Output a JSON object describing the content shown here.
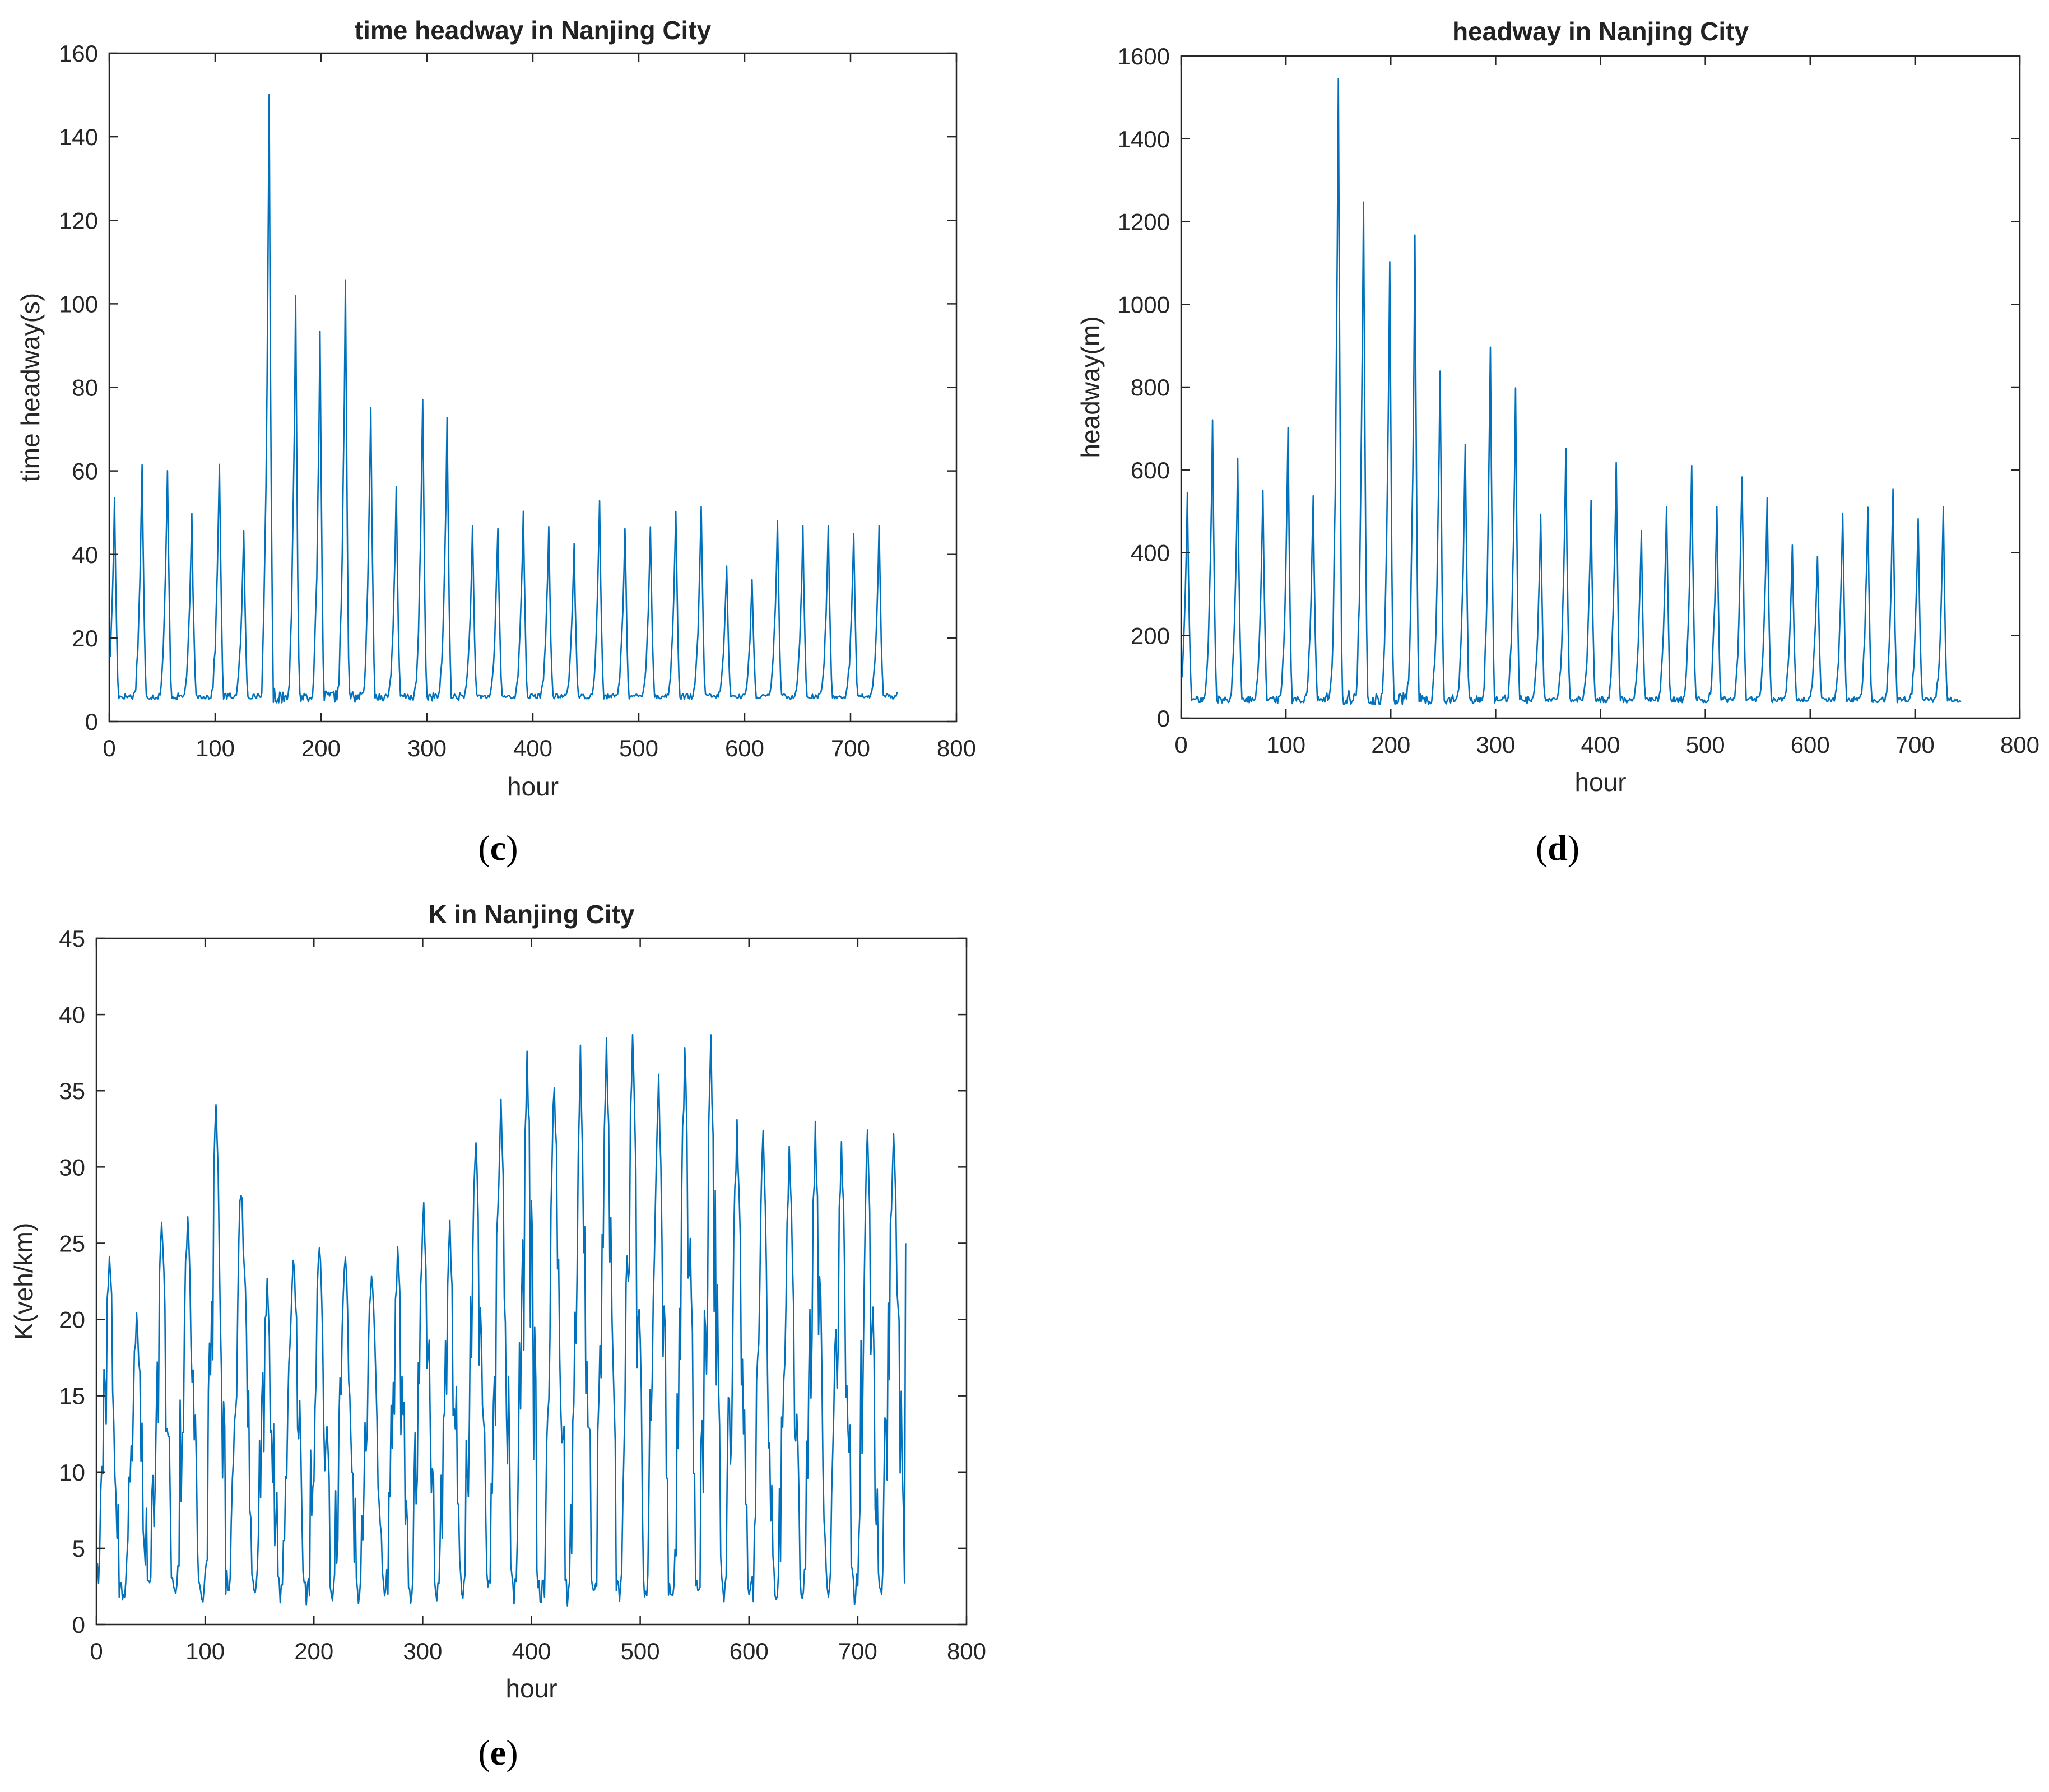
{
  "colors": {
    "series": "#0072bd",
    "axis": "#262626",
    "background": "#ffffff"
  },
  "chart_data": [
    {
      "type": "line",
      "panel": "c",
      "title": "time headway in Nanjing City",
      "xlabel": "hour",
      "ylabel": "time headway(s)",
      "xlim": [
        0,
        800
      ],
      "ylim": [
        0,
        160
      ],
      "xticks": [
        0,
        100,
        200,
        300,
        400,
        500,
        600,
        700,
        800
      ],
      "yticks": [
        0,
        20,
        40,
        60,
        80,
        100,
        120,
        140,
        160
      ],
      "grid": false,
      "x_range": [
        1,
        744
      ],
      "baseline": 6,
      "peaks": [
        [
          5,
          53
        ],
        [
          31,
          62
        ],
        [
          55,
          60
        ],
        [
          78,
          49
        ],
        [
          104,
          63
        ],
        [
          127,
          45
        ],
        [
          151,
          151
        ],
        [
          176,
          100
        ],
        [
          199,
          92
        ],
        [
          223,
          105
        ],
        [
          247,
          77
        ],
        [
          271,
          55
        ],
        [
          296,
          79
        ],
        [
          319,
          73
        ],
        [
          343,
          46
        ],
        [
          367,
          47
        ],
        [
          391,
          51
        ],
        [
          415,
          47
        ],
        [
          439,
          43
        ],
        [
          463,
          52
        ],
        [
          487,
          47
        ],
        [
          511,
          47
        ],
        [
          535,
          51
        ],
        [
          559,
          52
        ],
        [
          583,
          37
        ],
        [
          607,
          33
        ],
        [
          631,
          48
        ],
        [
          655,
          46
        ],
        [
          679,
          46
        ],
        [
          703,
          45
        ],
        [
          727,
          47
        ]
      ],
      "end_value": 7
    },
    {
      "type": "line",
      "panel": "d",
      "title": "headway in Nanjing City",
      "xlabel": "hour",
      "ylabel": "headway(m)",
      "xlim": [
        0,
        800
      ],
      "ylim": [
        0,
        1600
      ],
      "xticks": [
        0,
        100,
        200,
        300,
        400,
        500,
        600,
        700,
        800
      ],
      "yticks": [
        0,
        200,
        400,
        600,
        800,
        1000,
        1200,
        1400,
        1600
      ],
      "grid": false,
      "x_range": [
        1,
        744
      ],
      "baseline": 45,
      "peaks": [
        [
          6,
          545
        ],
        [
          30,
          710
        ],
        [
          54,
          612
        ],
        [
          78,
          555
        ],
        [
          102,
          698
        ],
        [
          126,
          540
        ],
        [
          150,
          1570
        ],
        [
          174,
          1255
        ],
        [
          199,
          1100
        ],
        [
          223,
          1135
        ],
        [
          247,
          840
        ],
        [
          271,
          665
        ],
        [
          295,
          885
        ],
        [
          319,
          790
        ],
        [
          343,
          490
        ],
        [
          367,
          640
        ],
        [
          391,
          520
        ],
        [
          415,
          615
        ],
        [
          439,
          445
        ],
        [
          463,
          525
        ],
        [
          487,
          618
        ],
        [
          511,
          515
        ],
        [
          535,
          598
        ],
        [
          559,
          530
        ],
        [
          583,
          428
        ],
        [
          607,
          400
        ],
        [
          631,
          505
        ],
        [
          655,
          510
        ],
        [
          679,
          550
        ],
        [
          703,
          490
        ],
        [
          727,
          500
        ]
      ],
      "end_value": 40
    },
    {
      "type": "line",
      "panel": "e",
      "title": "K in Nanjing City",
      "xlabel": "hour",
      "ylabel": "K(veh/km)",
      "xlim": [
        0,
        800
      ],
      "ylim": [
        0,
        45
      ],
      "xticks": [
        0,
        100,
        200,
        300,
        400,
        500,
        600,
        700,
        800
      ],
      "yticks": [
        0,
        5,
        10,
        15,
        20,
        25,
        30,
        35,
        40,
        45
      ],
      "grid": false,
      "x_range": [
        1,
        744
      ],
      "baseline": 1.8,
      "peaks": [
        [
          12,
          25
        ],
        [
          37,
          21
        ],
        [
          60,
          27
        ],
        [
          84,
          28
        ],
        [
          110,
          35
        ],
        [
          133,
          30
        ],
        [
          157,
          23
        ],
        [
          181,
          25
        ],
        [
          205,
          26
        ],
        [
          229,
          25
        ],
        [
          253,
          24
        ],
        [
          277,
          25
        ],
        [
          301,
          28
        ],
        [
          325,
          27
        ],
        [
          349,
          33
        ],
        [
          372,
          35
        ],
        [
          396,
          38
        ],
        [
          421,
          37
        ],
        [
          445,
          38
        ],
        [
          469,
          39
        ],
        [
          493,
          40
        ],
        [
          517,
          37
        ],
        [
          541,
          38
        ],
        [
          565,
          39
        ],
        [
          589,
          34
        ],
        [
          613,
          33
        ],
        [
          637,
          32
        ],
        [
          661,
          33
        ],
        [
          685,
          32
        ],
        [
          709,
          33
        ],
        [
          733,
          33
        ]
      ],
      "start_value": 4,
      "end_value": 25
    }
  ],
  "panel_labels": [
    "c",
    "d",
    "e"
  ]
}
